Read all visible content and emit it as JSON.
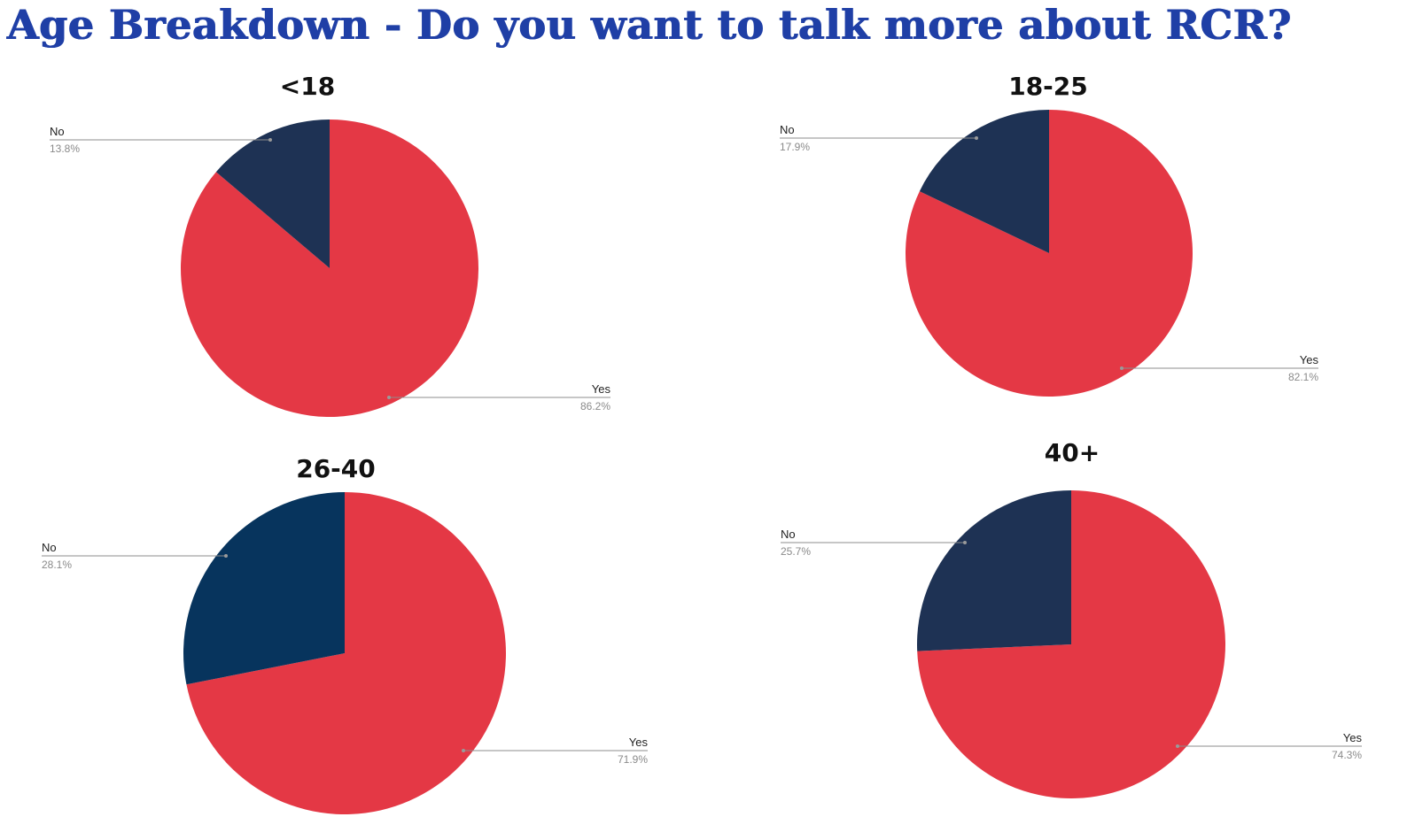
{
  "page": {
    "title": "Age Breakdown - Do you want to talk more about RCR?"
  },
  "chart_data": [
    {
      "type": "pie",
      "title": "<18",
      "series": [
        {
          "name": "No",
          "value": 13.8,
          "label": "13.8%",
          "color": "#1e3254"
        },
        {
          "name": "Yes",
          "value": 86.2,
          "label": "86.2%",
          "color": "#e43845"
        }
      ]
    },
    {
      "type": "pie",
      "title": "18-25",
      "series": [
        {
          "name": "No",
          "value": 17.9,
          "label": "17.9%",
          "color": "#1e3254"
        },
        {
          "name": "Yes",
          "value": 82.1,
          "label": "82.1%",
          "color": "#e43845"
        }
      ]
    },
    {
      "type": "pie",
      "title": "26-40",
      "series": [
        {
          "name": "No",
          "value": 28.1,
          "label": "28.1%",
          "color": "#07345d"
        },
        {
          "name": "Yes",
          "value": 71.9,
          "label": "71.9%",
          "color": "#e43845"
        }
      ]
    },
    {
      "type": "pie",
      "title": "40+",
      "series": [
        {
          "name": "No",
          "value": 25.7,
          "label": "25.7%",
          "color": "#1e3254"
        },
        {
          "name": "Yes",
          "value": 74.3,
          "label": "74.3%",
          "color": "#e43845"
        }
      ]
    }
  ]
}
